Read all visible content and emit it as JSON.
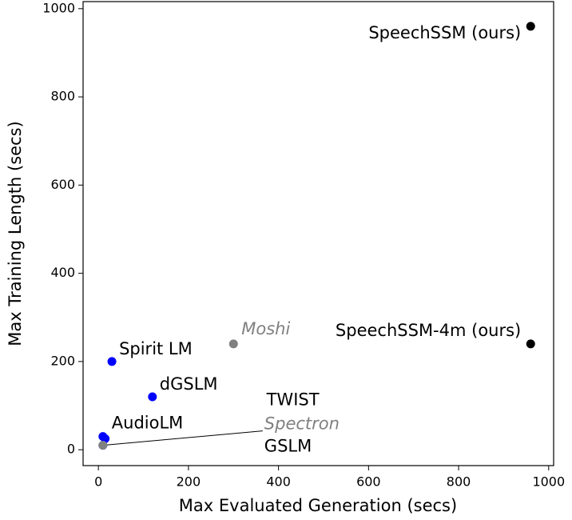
{
  "chart_data": {
    "type": "scatter",
    "xlabel": "Max Evaluated Generation (secs)",
    "ylabel": "Max Training Length (secs)",
    "xlim": [
      -34,
      1011
    ],
    "ylim": [
      -36,
      1016
    ],
    "xticks": [
      0,
      200,
      400,
      600,
      800,
      1000
    ],
    "yticks": [
      0,
      200,
      400,
      600,
      800,
      1000
    ],
    "points": [
      {
        "label": "SpeechSSM (ours)",
        "x": 960,
        "y": 960,
        "color": "#000000"
      },
      {
        "label": "SpeechSSM-4m (ours)",
        "x": 960,
        "y": 240,
        "color": "#000000"
      },
      {
        "label": "Moshi",
        "x": 300,
        "y": 240,
        "color": "#808080",
        "font_style": "italic"
      },
      {
        "label": "Spirit LM",
        "x": 30,
        "y": 200,
        "color": "#0000ff"
      },
      {
        "label": "dGSLM",
        "x": 120,
        "y": 120,
        "color": "#0000ff"
      },
      {
        "label": "AudioLM",
        "x": 10,
        "y": 30,
        "color": "#0000ff"
      },
      {
        "label": "TWIST",
        "x": 15,
        "y": 25,
        "color": "#0000ff"
      },
      {
        "label": "GSLM",
        "x": 10,
        "y": 10,
        "color": "#0000ff"
      },
      {
        "label": "Spectron",
        "x": 10,
        "y": 10,
        "color": "#808080",
        "font_style": "italic"
      }
    ]
  }
}
